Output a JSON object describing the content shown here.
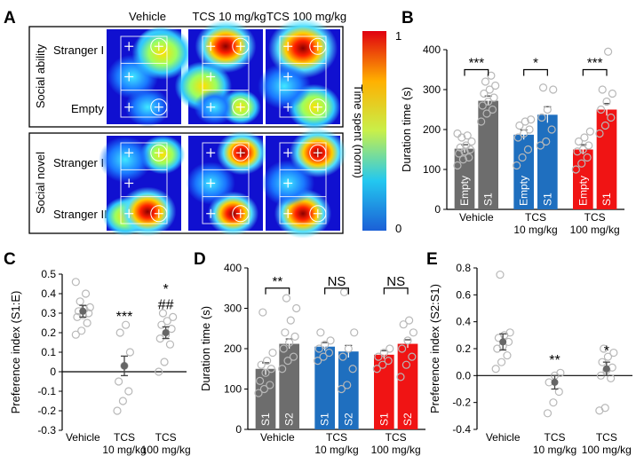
{
  "colors": {
    "vehicle": "#6d6d6d",
    "tcs10": "#1f6fbf",
    "tcs100": "#f01414",
    "dot": "#b8b8b8",
    "axis": "#000000"
  },
  "panels": {
    "A": {
      "letter": "A",
      "col_titles": [
        "Vehicle",
        "TCS 10 mg/kg",
        "TCS 100 mg/kg"
      ],
      "section1": {
        "label": "Social ability",
        "top": "Stranger I",
        "bottom": "Empty"
      },
      "section2": {
        "label": "Social novel",
        "top": "Stranger I",
        "bottom": "Stranger II"
      },
      "colorbar": {
        "label": "Time spent (norm)",
        "max": "1",
        "min": "0"
      }
    },
    "B": {
      "letter": "B"
    },
    "C": {
      "letter": "C"
    },
    "D": {
      "letter": "D"
    },
    "E": {
      "letter": "E"
    }
  },
  "chart_data": [
    {
      "id": "B",
      "type": "bar",
      "ylabel": "Duration time (s)",
      "ylim": [
        0,
        400
      ],
      "yticks": [
        0,
        100,
        200,
        300,
        400
      ],
      "groups": [
        "Vehicle",
        "TCS\n10 mg/kg",
        "TCS\n100 mg/kg"
      ],
      "bar_labels": [
        "Empty",
        "S1",
        "Empty",
        "S1",
        "Empty",
        "S1"
      ],
      "values": [
        152,
        272,
        187,
        237,
        150,
        250
      ],
      "errors": [
        10,
        12,
        12,
        20,
        12,
        15
      ],
      "bar_groups": [
        0,
        0,
        1,
        1,
        2,
        2
      ],
      "points": [
        [
          110,
          125,
          130,
          140,
          145,
          150,
          155,
          160,
          170,
          180,
          185,
          190
        ],
        [
          220,
          240,
          250,
          260,
          270,
          280,
          290,
          300,
          310,
          320,
          335
        ],
        [
          110,
          130,
          150,
          180,
          190,
          200,
          210,
          220,
          225
        ],
        [
          160,
          170,
          200,
          230,
          250,
          300,
          305
        ],
        [
          100,
          115,
          130,
          145,
          150,
          160,
          170,
          180,
          195
        ],
        [
          190,
          210,
          230,
          250,
          270,
          290,
          300,
          395
        ]
      ],
      "significance": [
        {
          "groupIndex": 0,
          "text": "***",
          "y": 350
        },
        {
          "groupIndex": 1,
          "text": "*",
          "y": 350
        },
        {
          "groupIndex": 2,
          "text": "***",
          "y": 350
        }
      ]
    },
    {
      "id": "C",
      "type": "scatter",
      "ylabel": "Preference index (S1:E)",
      "ylim": [
        -0.3,
        0.5
      ],
      "yticks": [
        -0.3,
        -0.2,
        -0.1,
        0,
        0.1,
        0.2,
        0.3,
        0.4,
        0.5
      ],
      "groups": [
        "Vehicle",
        "TCS\n10 mg/kg",
        "TCS\n100 mg/kg"
      ],
      "means": [
        0.31,
        0.03,
        0.2
      ],
      "errors": [
        0.03,
        0.05,
        0.03
      ],
      "points": [
        [
          0.19,
          0.21,
          0.25,
          0.28,
          0.29,
          0.3,
          0.31,
          0.32,
          0.33,
          0.36,
          0.4,
          0.46
        ],
        [
          -0.2,
          -0.15,
          -0.1,
          -0.05,
          0.03,
          0.1,
          0.2,
          0.24
        ],
        [
          0.0,
          0.05,
          0.14,
          0.17,
          0.19,
          0.22,
          0.24,
          0.26,
          0.28,
          0.3
        ]
      ],
      "significance": [
        {
          "groupIndex": 1,
          "text": "***",
          "y": 0.26
        },
        {
          "groupIndex": 2,
          "text": "*",
          "y": 0.4
        },
        {
          "groupIndex": 2,
          "text": "##",
          "y": 0.32
        }
      ]
    },
    {
      "id": "D",
      "type": "bar",
      "ylabel": "Duration time (s)",
      "ylim": [
        0,
        400
      ],
      "yticks": [
        0,
        100,
        200,
        300,
        400
      ],
      "groups": [
        "Vehicle",
        "TCS\n10 mg/kg",
        "TCS\n100 mg/kg"
      ],
      "bar_labels": [
        "S1",
        "S2",
        "S1",
        "S2",
        "S1",
        "S2"
      ],
      "values": [
        150,
        212,
        205,
        193,
        185,
        212
      ],
      "errors": [
        15,
        12,
        10,
        15,
        10,
        10
      ],
      "bar_groups": [
        0,
        0,
        1,
        1,
        2,
        2
      ],
      "points": [
        [
          90,
          100,
          110,
          120,
          140,
          150,
          160,
          170,
          190,
          290
        ],
        [
          150,
          170,
          180,
          200,
          215,
          230,
          240,
          270,
          300,
          325
        ],
        [
          170,
          180,
          190,
          200,
          210,
          220,
          240
        ],
        [
          100,
          110,
          150,
          180,
          200,
          240,
          340
        ],
        [
          150,
          160,
          170,
          180,
          190,
          200
        ],
        [
          130,
          160,
          180,
          200,
          220,
          240,
          260,
          270
        ]
      ],
      "significance": [
        {
          "groupIndex": 0,
          "text": "**",
          "y": 350
        },
        {
          "groupIndex": 1,
          "text": "NS",
          "y": 350
        },
        {
          "groupIndex": 2,
          "text": "NS",
          "y": 350
        }
      ]
    },
    {
      "id": "E",
      "type": "scatter",
      "ylabel": "Preference index (S2:S1)",
      "ylim": [
        -0.4,
        0.8
      ],
      "yticks": [
        -0.4,
        -0.2,
        0,
        0.2,
        0.4,
        0.6,
        0.8
      ],
      "groups": [
        "Vehicle",
        "TCS\n10 mg/kg",
        "TCS\n100 mg/kg"
      ],
      "means": [
        0.25,
        -0.05,
        0.05
      ],
      "errors": [
        0.06,
        0.05,
        0.05
      ],
      "points": [
        [
          0.05,
          0.1,
          0.15,
          0.2,
          0.22,
          0.25,
          0.28,
          0.3,
          0.32,
          0.75
        ],
        [
          -0.28,
          -0.2,
          -0.12,
          -0.05,
          0.0,
          0.02
        ],
        [
          -0.26,
          -0.24,
          -0.02,
          0.0,
          0.04,
          0.06,
          0.1,
          0.14,
          0.17,
          0.2
        ]
      ],
      "significance": [
        {
          "groupIndex": 1,
          "text": "**",
          "y": 0.08
        },
        {
          "groupIndex": 2,
          "text": "*",
          "y": 0.15
        }
      ]
    }
  ]
}
